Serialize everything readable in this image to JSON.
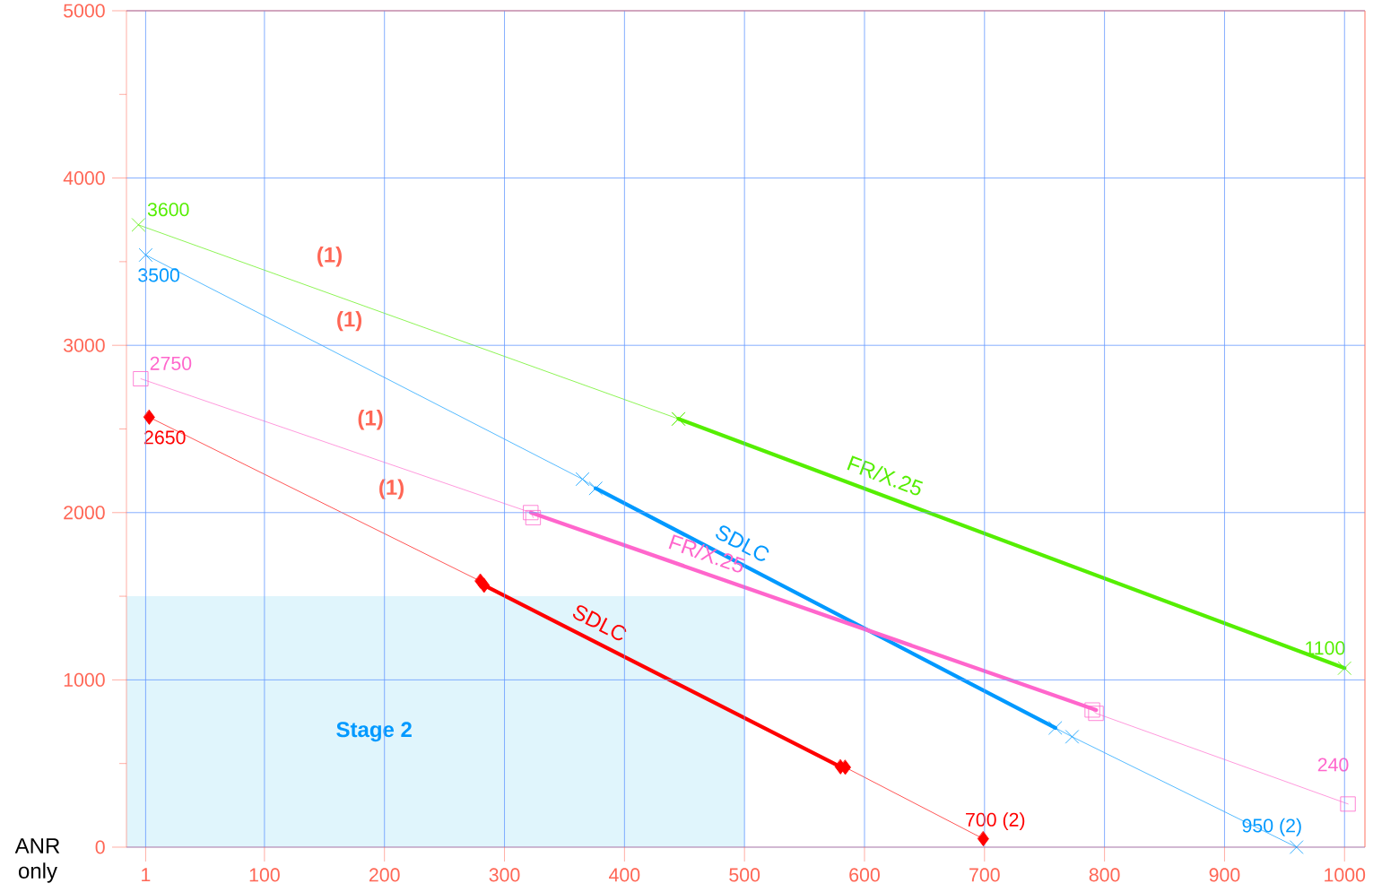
{
  "chart_data": {
    "type": "line",
    "xlim": [
      -15,
      1017
    ],
    "ylim": [
      0,
      5000
    ],
    "xticks": [
      1,
      100,
      200,
      300,
      400,
      500,
      600,
      700,
      800,
      900,
      1000
    ],
    "yticks": [
      0,
      {
        "value": 500,
        "label": null
      },
      1000,
      {
        "value": 1500,
        "label": null
      },
      2000,
      {
        "value": 2500,
        "label": null
      },
      3000,
      {
        "value": 3500,
        "label": null
      },
      4000,
      {
        "value": 4500,
        "label": null
      },
      5000
    ],
    "grid": true,
    "series": [
      {
        "type": "area",
        "color": "#e0f5fc",
        "x": [
          -15,
          500
        ],
        "values": [
          1500,
          1500
        ]
      },
      {
        "color": "#55ee00",
        "marker": "cross",
        "x": [
          -5,
          445
        ],
        "values": [
          3720,
          2560
        ]
      },
      {
        "name": "FR/X.25",
        "color": "#55ee00",
        "marker": "cross",
        "x": [
          445,
          1000
        ],
        "values": [
          2560,
          1070
        ]
      },
      {
        "color": "#0099ff",
        "marker": "cross",
        "x": [
          1,
          365,
          376
        ],
        "values": [
          3540,
          2200,
          2145
        ]
      },
      {
        "name": "SDLC",
        "color": "#0099ff",
        "x": [
          376,
          759
        ],
        "values": [
          2145,
          713
        ]
      },
      {
        "color": "#0099ff",
        "marker": "cross",
        "x": [
          759,
          773,
          960
        ],
        "values": [
          713,
          660,
          0
        ]
      },
      {
        "color": "#ff66cc",
        "marker": "square",
        "x": [
          -3,
          322,
          324
        ],
        "values": [
          2800,
          2000,
          1970
        ]
      },
      {
        "name": "FR/X.25",
        "color": "#ff66cc",
        "x": [
          322,
          793
        ],
        "values": [
          2000,
          820
        ]
      },
      {
        "color": "#ff66cc",
        "marker": "square",
        "x": [
          790,
          793,
          1003
        ],
        "values": [
          820,
          800,
          258
        ]
      },
      {
        "color": "#ff0000",
        "marker": "diamond",
        "x": [
          4,
          280,
          283
        ],
        "values": [
          2570,
          1590,
          1565
        ]
      },
      {
        "name": "SDLC",
        "color": "#ff0000",
        "x": [
          283,
          580
        ],
        "values": [
          1565,
          480
        ]
      },
      {
        "color": "#ff0000",
        "marker": "diamond",
        "x": [
          580,
          584,
          699
        ],
        "values": [
          480,
          477,
          50
        ]
      }
    ],
    "annotations": [
      "(1)",
      "(1)",
      "(1)",
      "(1)",
      "Stage 2",
      "ANR only",
      {
        "text": "3600",
        "x": -5,
        "y": 3720
      },
      {
        "text": "1100",
        "x": 1000,
        "y": 1070
      },
      {
        "text": "3500",
        "x": 1,
        "y": 3540
      },
      {
        "text": "950 (2)",
        "x": 960,
        "y": 0
      },
      {
        "text": "2750",
        "x": -3,
        "y": 2800
      },
      {
        "text": "240",
        "x": 1003,
        "y": 258
      },
      {
        "text": "2650",
        "x": 4,
        "y": 2570
      },
      {
        "text": "700 (2)",
        "x": 699,
        "y": 50
      }
    ]
  }
}
